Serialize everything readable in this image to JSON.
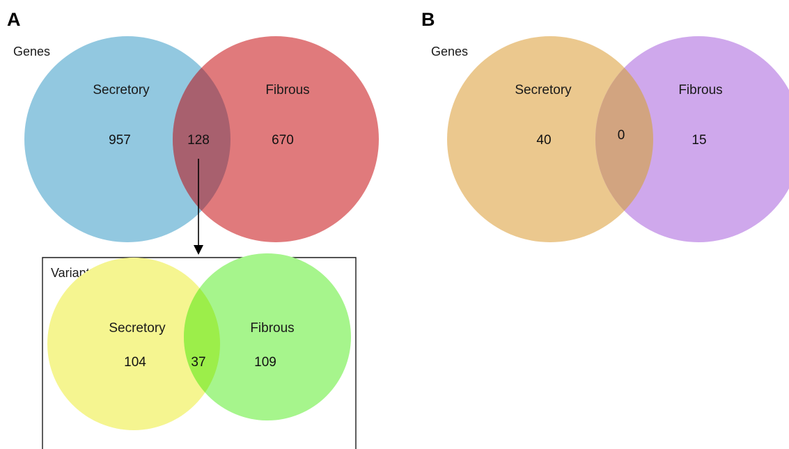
{
  "panels": {
    "a": {
      "letter": "A",
      "genes": {
        "title": "Genes",
        "left_label": "Secretory",
        "right_label": "Fibrous",
        "left_only": "957",
        "overlap": "128",
        "right_only": "670",
        "colors": {
          "left": "#92c8e0",
          "right": "#e07a7c",
          "overlap": "#a8606e"
        }
      },
      "variants": {
        "title": "Variants",
        "left_label": "Secretory",
        "right_label": "Fibrous",
        "left_only": "104",
        "overlap": "37",
        "right_only": "109",
        "colors": {
          "left": "#f5f590",
          "right": "#a6f58c",
          "overlap": "#9cee4a"
        }
      }
    },
    "b": {
      "letter": "B",
      "genes": {
        "title": "Genes",
        "left_label": "Secretory",
        "right_label": "Fibrous",
        "left_only": "40",
        "overlap": "0",
        "right_only": "15",
        "colors": {
          "left": "#ebc88e",
          "right": "#cfa8ec",
          "overlap": "#d2a480"
        }
      }
    }
  }
}
